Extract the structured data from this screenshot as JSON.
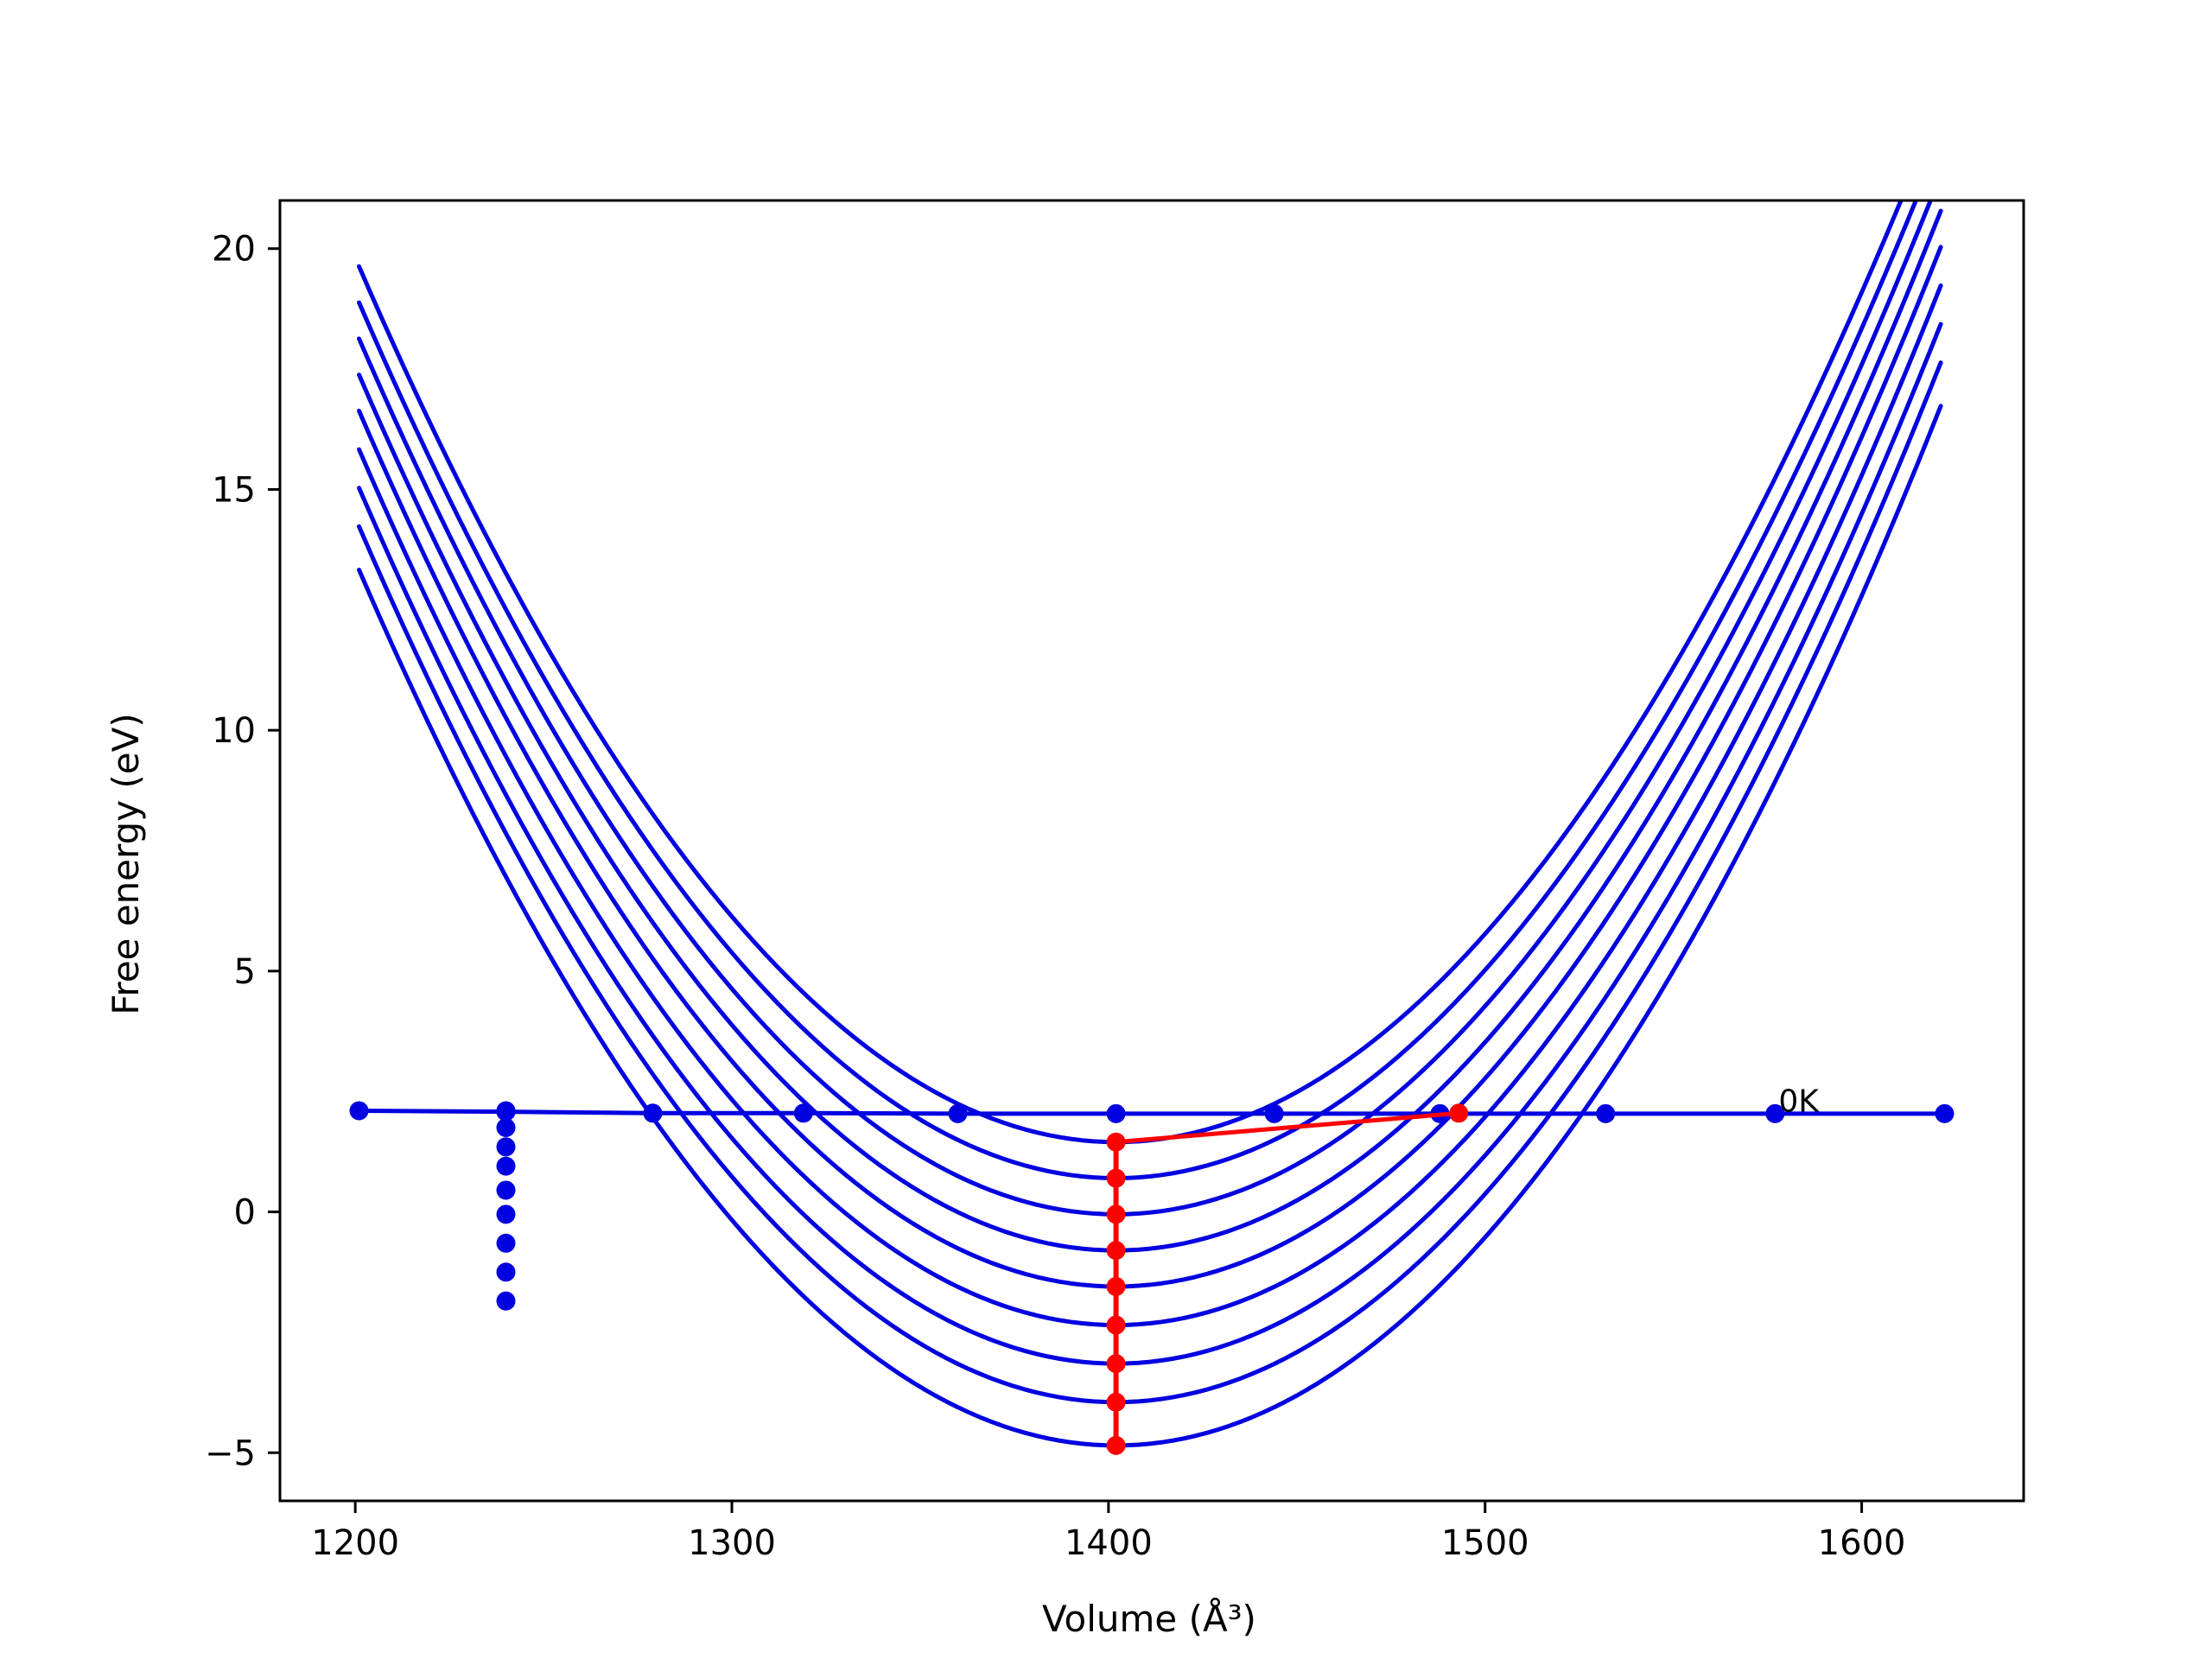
{
  "chart_data": {
    "type": "line",
    "title": "",
    "xlabel": "Volume (Å³)",
    "ylabel": "Free energy (eV)",
    "xlim": [
      1180,
      1643
    ],
    "ylim": [
      -6,
      21
    ],
    "xticks": [
      1200,
      1300,
      1400,
      1500,
      1600
    ],
    "yticks": [
      -5,
      0,
      5,
      10,
      15,
      20
    ],
    "grid": false,
    "legend": false,
    "annotations": [
      {
        "text": "0K",
        "x": 1577,
        "y": 2.05
      }
    ],
    "curve_domain": [
      1201,
      1622
    ],
    "curves": [
      {
        "vertex_x": 1402,
        "vertex_y": 1.45,
        "curvature": 0.00045,
        "color": "#0000e0"
      },
      {
        "vertex_x": 1402,
        "vertex_y": 0.7,
        "curvature": 0.00045,
        "color": "#0000e0"
      },
      {
        "vertex_x": 1402,
        "vertex_y": -0.05,
        "curvature": 0.00045,
        "color": "#0000e0"
      },
      {
        "vertex_x": 1402,
        "vertex_y": -0.8,
        "curvature": 0.00045,
        "color": "#0000e0"
      },
      {
        "vertex_x": 1402,
        "vertex_y": -1.55,
        "curvature": 0.00045,
        "color": "#0000e0"
      },
      {
        "vertex_x": 1402,
        "vertex_y": -2.35,
        "curvature": 0.00045,
        "color": "#0000e0"
      },
      {
        "vertex_x": 1402,
        "vertex_y": -3.15,
        "curvature": 0.00045,
        "color": "#0000e0"
      },
      {
        "vertex_x": 1402,
        "vertex_y": -3.95,
        "curvature": 0.00045,
        "color": "#0000e0"
      },
      {
        "vertex_x": 1402,
        "vertex_y": -4.85,
        "curvature": 0.00045,
        "color": "#0000e0"
      }
    ],
    "horizontal_series": {
      "color": "#0000e0",
      "points": [
        [
          1201,
          2.1
        ],
        [
          1240,
          2.08
        ],
        [
          1279,
          2.05
        ],
        [
          1319,
          2.05
        ],
        [
          1360,
          2.04
        ],
        [
          1402,
          2.04
        ],
        [
          1444,
          2.04
        ],
        [
          1488,
          2.04
        ],
        [
          1532,
          2.04
        ],
        [
          1577,
          2.04
        ],
        [
          1622,
          2.04
        ]
      ]
    },
    "vertical_blue_points": {
      "color": "#0000e0",
      "points": [
        [
          1240,
          2.1
        ],
        [
          1240,
          1.75
        ],
        [
          1240,
          1.35
        ],
        [
          1240,
          0.95
        ],
        [
          1240,
          0.45
        ],
        [
          1240,
          -0.05
        ],
        [
          1240,
          -0.65
        ],
        [
          1240,
          -1.25
        ],
        [
          1240,
          -1.85
        ]
      ]
    },
    "red_series": {
      "color": "#ff0000",
      "points": [
        [
          1402,
          1.45
        ],
        [
          1402,
          0.7
        ],
        [
          1402,
          -0.05
        ],
        [
          1402,
          -0.8
        ],
        [
          1402,
          -1.55
        ],
        [
          1402,
          -2.35
        ],
        [
          1402,
          -3.15
        ],
        [
          1402,
          -3.95
        ],
        [
          1402,
          -4.85
        ]
      ],
      "connector_from": [
        1402,
        1.45
      ],
      "connector_to": [
        1493,
        2.05
      ]
    }
  }
}
